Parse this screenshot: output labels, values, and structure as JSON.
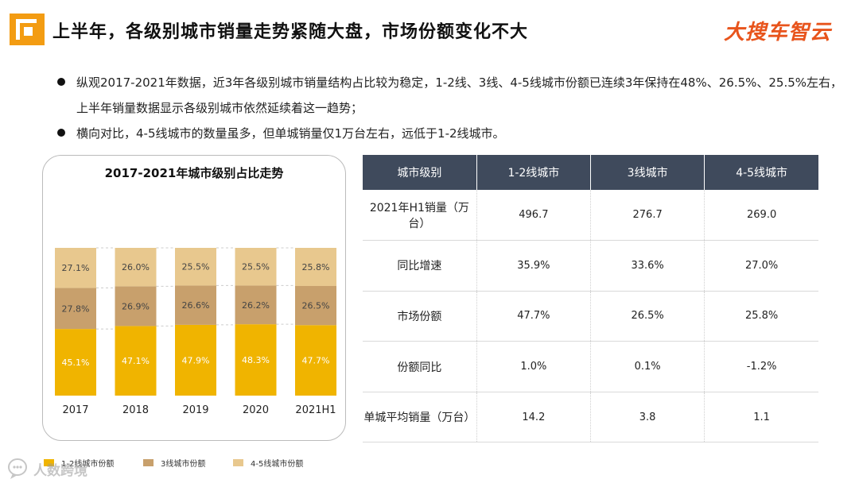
{
  "header": {
    "title": "上半年，各级别城市销量走势紧随大盘，市场份额变化不大",
    "brand": "大搜车智云"
  },
  "bullets": [
    "纵观2017-2021年数据，近3年各级别城市销量结构占比较为稳定，1-2线、3线、4-5线城市份额已连续3年保持在48%、26.5%、25.5%左右，上半年销量数据显示各级别城市依然延续着这一趋势；",
    "横向对比，4-5线城市的数量虽多，但单城销量仅1万台左右，远低于1-2线城市。"
  ],
  "chart_data": {
    "type": "bar",
    "stacked": true,
    "title": "2017-2021年城市级别占比走势",
    "categories": [
      "2017",
      "2018",
      "2019",
      "2020",
      "2021H1"
    ],
    "series": [
      {
        "name": "1-2线城市份额",
        "color": "#f0b400",
        "values": [
          45.1,
          47.1,
          47.9,
          48.3,
          47.7
        ],
        "labels": [
          "45.1%",
          "47.1%",
          "47.9%",
          "48.3%",
          "47.7%"
        ]
      },
      {
        "name": "3线城市份额",
        "color": "#c8a06c",
        "values": [
          27.8,
          26.9,
          26.6,
          26.2,
          26.5
        ],
        "labels": [
          "27.8%",
          "26.9%",
          "26.6%",
          "26.2%",
          "26.5%"
        ]
      },
      {
        "name": "4-5线城市份额",
        "color": "#e8c88e",
        "values": [
          27.1,
          26.0,
          25.5,
          25.5,
          25.8
        ],
        "labels": [
          "27.1%",
          "26.0%",
          "25.5%",
          "25.5%",
          "25.8%"
        ]
      }
    ],
    "ylim": [
      0,
      100
    ],
    "grid": false,
    "legend_position": "bottom",
    "xlabel": "",
    "ylabel": ""
  },
  "table": {
    "headers": [
      "城市级别",
      "1-2线城市",
      "3线城市",
      "4-5线城市"
    ],
    "rows": [
      {
        "label": "2021年H1销量（万台）",
        "values": [
          "496.7",
          "276.7",
          "269.0"
        ]
      },
      {
        "label": "同比增速",
        "values": [
          "35.9%",
          "33.6%",
          "27.0%"
        ]
      },
      {
        "label": "市场份额",
        "values": [
          "47.7%",
          "26.5%",
          "25.8%"
        ]
      },
      {
        "label": "份额同比",
        "values": [
          "1.0%",
          "0.1%",
          "-1.2%"
        ]
      },
      {
        "label": "单城平均销量（万台）",
        "values": [
          "14.2",
          "3.8",
          "1.1"
        ]
      }
    ]
  },
  "watermark": "人数跨境",
  "icons": {
    "logo": "square-logo-icon",
    "watermark": "chat-bubble-logo-icon"
  }
}
